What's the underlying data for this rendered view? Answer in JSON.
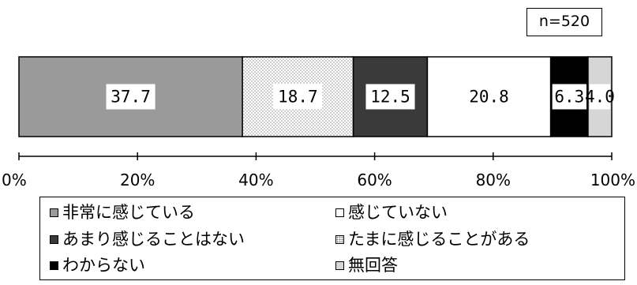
{
  "chart_data": {
    "type": "bar",
    "orientation": "horizontal",
    "stacked": true,
    "sample_note": "n=520",
    "xlim": [
      0,
      100
    ],
    "x_ticks": [
      "0%",
      "20%",
      "40%",
      "60%",
      "80%",
      "100%"
    ],
    "series": [
      {
        "name": "非常に感じている",
        "value": 37.7,
        "label": "37.7",
        "color": "#9a9a9a"
      },
      {
        "name": "たまに感じることがある",
        "value": 18.7,
        "label": "18.7",
        "color": "#ffffff",
        "pattern": "dots"
      },
      {
        "name": "あまり感じることはない",
        "value": 12.5,
        "label": "12.5",
        "color": "#3a3a3a"
      },
      {
        "name": "感じていない",
        "value": 20.8,
        "label": "20.8",
        "color": "#ffffff"
      },
      {
        "name": "わからない",
        "value": 6.3,
        "label": "6.3",
        "color": "#000000"
      },
      {
        "name": "無回答",
        "value": 4.0,
        "label": "4.0",
        "color": "#d6d6d6"
      }
    ],
    "legend_order": [
      0,
      3,
      2,
      1,
      4,
      5
    ],
    "grid": false
  }
}
